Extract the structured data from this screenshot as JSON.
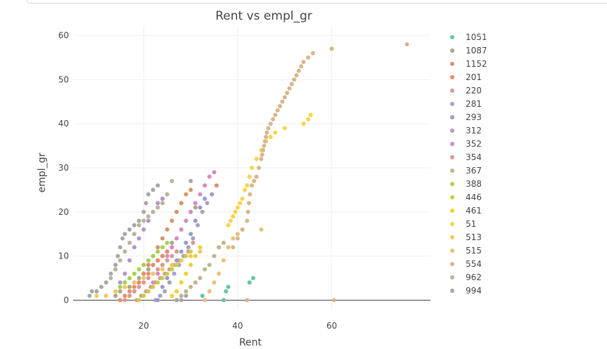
{
  "chart_data": {
    "type": "scatter",
    "title": "Rent vs empl_gr",
    "xlabel": "Rent",
    "ylabel": "empl_gr",
    "xlim": [
      5,
      81
    ],
    "ylim": [
      -2,
      62
    ],
    "xticks": [
      20,
      40,
      60
    ],
    "yticks": [
      0,
      10,
      20,
      30,
      40,
      50,
      60
    ],
    "grid": true,
    "legend_position": "right",
    "series": [
      {
        "name": "1051",
        "color": "#66c2a5",
        "points": [
          [
            32.5,
            1
          ],
          [
            37,
            0
          ],
          [
            37.5,
            2
          ],
          [
            38,
            3
          ],
          [
            42.5,
            4
          ],
          [
            43.3,
            5
          ]
        ]
      },
      {
        "name": "1087",
        "color": "#a9a68a",
        "points": [
          [
            14,
            1
          ],
          [
            15,
            2
          ],
          [
            16,
            3
          ],
          [
            17,
            3
          ],
          [
            18,
            4
          ],
          [
            19,
            5
          ],
          [
            20,
            6
          ],
          [
            21,
            7
          ],
          [
            22,
            8
          ],
          [
            23,
            9
          ],
          [
            24,
            10
          ],
          [
            25,
            11
          ],
          [
            26,
            13
          ],
          [
            27,
            14
          ],
          [
            28,
            16
          ],
          [
            29,
            18
          ],
          [
            30,
            20
          ],
          [
            31,
            21
          ]
        ]
      },
      {
        "name": "1152",
        "color": "#d9916b",
        "points": [
          [
            18,
            2
          ],
          [
            19,
            4
          ],
          [
            20,
            6
          ],
          [
            21,
            8
          ],
          [
            22,
            10
          ],
          [
            23,
            12
          ],
          [
            24,
            14
          ],
          [
            25,
            16
          ],
          [
            26,
            18
          ],
          [
            27,
            20
          ],
          [
            28,
            22
          ],
          [
            29,
            24
          ],
          [
            30,
            25
          ],
          [
            35.5,
            26
          ]
        ]
      },
      {
        "name": "201",
        "color": "#ea8a6b",
        "points": [
          [
            15,
            0
          ],
          [
            16,
            1
          ],
          [
            17,
            2
          ],
          [
            18,
            3
          ],
          [
            19,
            4
          ],
          [
            20,
            5
          ],
          [
            21,
            6
          ],
          [
            22,
            8
          ],
          [
            23,
            9
          ],
          [
            24,
            10
          ],
          [
            25,
            11
          ],
          [
            26,
            12
          ]
        ]
      },
      {
        "name": "220",
        "color": "#d79a8f",
        "points": [
          [
            18.5,
            0
          ],
          [
            19.5,
            1
          ],
          [
            20.5,
            2
          ],
          [
            21.5,
            3
          ],
          [
            22.5,
            4
          ],
          [
            23.5,
            5
          ],
          [
            24.5,
            6
          ],
          [
            25.5,
            7
          ],
          [
            26.5,
            8
          ],
          [
            27.5,
            9
          ],
          [
            28.5,
            10
          ],
          [
            29.5,
            11
          ],
          [
            30.5,
            13
          ]
        ]
      },
      {
        "name": "281",
        "color": "#a8a0c0",
        "points": [
          [
            22.5,
            0
          ],
          [
            23.5,
            1
          ],
          [
            24.5,
            2
          ],
          [
            25.5,
            4
          ],
          [
            26.5,
            6
          ],
          [
            27.5,
            8
          ],
          [
            28.5,
            10
          ],
          [
            29.5,
            12
          ],
          [
            30.5,
            14
          ],
          [
            31.5,
            17
          ],
          [
            32.5,
            20
          ],
          [
            33.5,
            22
          ]
        ]
      },
      {
        "name": "293",
        "color": "#9b9acb",
        "points": [
          [
            23,
            0
          ],
          [
            24,
            3
          ],
          [
            25,
            5
          ],
          [
            26,
            7
          ],
          [
            27,
            9
          ],
          [
            28,
            11
          ],
          [
            29,
            13
          ],
          [
            30,
            15
          ],
          [
            31,
            18
          ],
          [
            32,
            21
          ],
          [
            33,
            23
          ],
          [
            34.5,
            24
          ]
        ]
      },
      {
        "name": "312",
        "color": "#b494c8",
        "points": [
          [
            15,
            4
          ],
          [
            16,
            6
          ],
          [
            17,
            9
          ],
          [
            18,
            12
          ],
          [
            19,
            14
          ],
          [
            20,
            16
          ],
          [
            21,
            18
          ],
          [
            22,
            20
          ],
          [
            23,
            22
          ],
          [
            24,
            23
          ]
        ]
      },
      {
        "name": "352",
        "color": "#d989c2",
        "points": [
          [
            21,
            2
          ],
          [
            22,
            4
          ],
          [
            23,
            6
          ],
          [
            24,
            8
          ],
          [
            25,
            10
          ],
          [
            26,
            12
          ],
          [
            27,
            14
          ],
          [
            28,
            16
          ],
          [
            29,
            18
          ],
          [
            30,
            20
          ],
          [
            31,
            22
          ],
          [
            32,
            24
          ],
          [
            33,
            26
          ],
          [
            34,
            28
          ],
          [
            35,
            29
          ]
        ]
      },
      {
        "name": "354",
        "color": "#d99a8f",
        "points": [
          [
            16,
            0
          ],
          [
            17,
            1
          ],
          [
            18,
            2
          ],
          [
            19,
            3
          ],
          [
            20,
            4
          ],
          [
            21,
            5
          ],
          [
            22,
            6
          ],
          [
            23,
            7
          ],
          [
            24,
            8
          ],
          [
            25,
            9
          ],
          [
            26,
            10
          ],
          [
            27,
            11
          ]
        ]
      },
      {
        "name": "367",
        "color": "#c0b48a",
        "points": [
          [
            27,
            0
          ],
          [
            28,
            1
          ],
          [
            29,
            2
          ],
          [
            30,
            3
          ],
          [
            31,
            4
          ],
          [
            32,
            5
          ],
          [
            33,
            7
          ],
          [
            34,
            8
          ],
          [
            35,
            10
          ],
          [
            36,
            12
          ],
          [
            37,
            13
          ]
        ]
      },
      {
        "name": "388",
        "color": "#a8d04c",
        "points": [
          [
            14,
            2
          ],
          [
            15,
            3
          ],
          [
            16,
            4
          ],
          [
            17,
            5
          ],
          [
            18,
            6
          ],
          [
            19,
            7
          ],
          [
            20,
            8
          ],
          [
            21,
            9
          ],
          [
            22,
            10
          ],
          [
            23,
            11
          ],
          [
            24,
            12
          ],
          [
            25,
            13
          ]
        ]
      },
      {
        "name": "446",
        "color": "#c8d040",
        "points": [
          [
            19,
            0
          ],
          [
            20,
            1
          ],
          [
            21,
            2
          ],
          [
            22,
            3
          ],
          [
            23,
            4
          ],
          [
            24,
            5
          ],
          [
            25,
            6
          ],
          [
            26,
            7
          ],
          [
            27,
            8
          ],
          [
            28,
            9
          ],
          [
            29,
            10
          ],
          [
            30,
            11
          ]
        ]
      },
      {
        "name": "461",
        "color": "#f0d030",
        "points": [
          [
            26,
            1
          ],
          [
            27,
            2
          ],
          [
            28,
            4
          ],
          [
            29,
            6
          ],
          [
            30,
            8
          ],
          [
            31,
            10
          ],
          [
            32,
            12
          ]
        ]
      },
      {
        "name": "51",
        "color": "#f5d44a",
        "points": [
          [
            38,
            17
          ],
          [
            38.5,
            18
          ],
          [
            39,
            19
          ],
          [
            39.5,
            20
          ],
          [
            40,
            21
          ],
          [
            40.5,
            22
          ],
          [
            41,
            23
          ],
          [
            41.5,
            25
          ],
          [
            42,
            26
          ],
          [
            42.5,
            28
          ],
          [
            43,
            30
          ],
          [
            44,
            32
          ],
          [
            45,
            34
          ],
          [
            46,
            36
          ],
          [
            47,
            37
          ],
          [
            48,
            38
          ],
          [
            50,
            39
          ],
          [
            54,
            40
          ],
          [
            55,
            41
          ],
          [
            55.5,
            42
          ]
        ]
      },
      {
        "name": "513",
        "color": "#f2c85e",
        "points": [
          [
            10,
            1
          ],
          [
            12,
            1
          ],
          [
            14,
            2
          ],
          [
            16,
            3
          ],
          [
            18,
            4
          ],
          [
            20,
            5
          ],
          [
            22,
            6
          ],
          [
            24,
            7
          ],
          [
            26,
            8
          ],
          [
            28,
            9
          ],
          [
            30,
            10
          ],
          [
            32,
            11
          ]
        ]
      },
      {
        "name": "515",
        "color": "#ecc07a",
        "points": [
          [
            33,
            0
          ],
          [
            34,
            2
          ],
          [
            35,
            4
          ],
          [
            36,
            6
          ],
          [
            37,
            9
          ],
          [
            38,
            12
          ],
          [
            39,
            14
          ],
          [
            40,
            15
          ],
          [
            41,
            16
          ],
          [
            45,
            16
          ]
        ]
      },
      {
        "name": "554",
        "color": "#d8b68a",
        "points": [
          [
            39,
            12
          ],
          [
            40,
            14
          ],
          [
            41,
            16
          ],
          [
            42,
            18
          ],
          [
            42.2,
            20
          ],
          [
            42.4,
            22
          ],
          [
            42.6,
            24
          ],
          [
            43,
            26
          ],
          [
            43.5,
            27
          ],
          [
            44,
            28
          ],
          [
            44.5,
            30
          ],
          [
            45,
            32
          ],
          [
            45.2,
            33
          ],
          [
            45.4,
            34
          ],
          [
            45.6,
            35
          ],
          [
            45.8,
            36
          ],
          [
            46,
            37
          ],
          [
            46.2,
            38
          ],
          [
            46.5,
            39
          ],
          [
            47,
            40
          ],
          [
            47.5,
            41
          ],
          [
            48,
            42
          ],
          [
            48.5,
            43
          ],
          [
            49,
            44
          ],
          [
            49.5,
            45
          ],
          [
            50,
            46
          ],
          [
            50.5,
            47
          ],
          [
            51,
            48
          ],
          [
            51.5,
            49
          ],
          [
            52,
            50
          ],
          [
            52.5,
            51
          ],
          [
            53,
            52
          ],
          [
            53.5,
            53
          ],
          [
            54,
            54
          ],
          [
            55,
            55
          ],
          [
            56,
            56
          ],
          [
            60,
            57
          ],
          [
            76,
            58
          ],
          [
            60.5,
            0
          ],
          [
            42,
            0
          ]
        ]
      },
      {
        "name": "962",
        "color": "#bbb2a0",
        "points": [
          [
            13,
            5
          ],
          [
            14,
            7
          ],
          [
            15,
            9
          ],
          [
            16,
            11
          ],
          [
            17,
            13
          ],
          [
            18,
            15
          ],
          [
            19,
            17
          ],
          [
            20,
            18
          ],
          [
            21,
            19
          ],
          [
            22,
            20
          ],
          [
            23,
            21
          ],
          [
            24,
            22
          ],
          [
            25,
            24
          ],
          [
            26,
            27
          ]
        ]
      },
      {
        "name": "994",
        "color": "#a8a8a8",
        "points": [
          [
            8.5,
            1
          ],
          [
            9,
            2
          ],
          [
            10,
            2
          ],
          [
            11,
            3
          ],
          [
            12,
            4
          ],
          [
            13,
            6
          ],
          [
            14,
            8
          ],
          [
            14.5,
            10
          ],
          [
            15,
            12
          ],
          [
            15.5,
            14
          ],
          [
            16,
            15
          ],
          [
            17,
            16
          ],
          [
            18,
            17
          ],
          [
            19,
            18
          ],
          [
            20,
            20
          ],
          [
            20.5,
            22
          ],
          [
            21,
            24
          ],
          [
            22,
            25
          ],
          [
            23,
            26
          ],
          [
            27,
            0
          ],
          [
            28,
            0
          ],
          [
            29,
            1
          ],
          [
            30,
            27
          ]
        ]
      }
    ]
  }
}
